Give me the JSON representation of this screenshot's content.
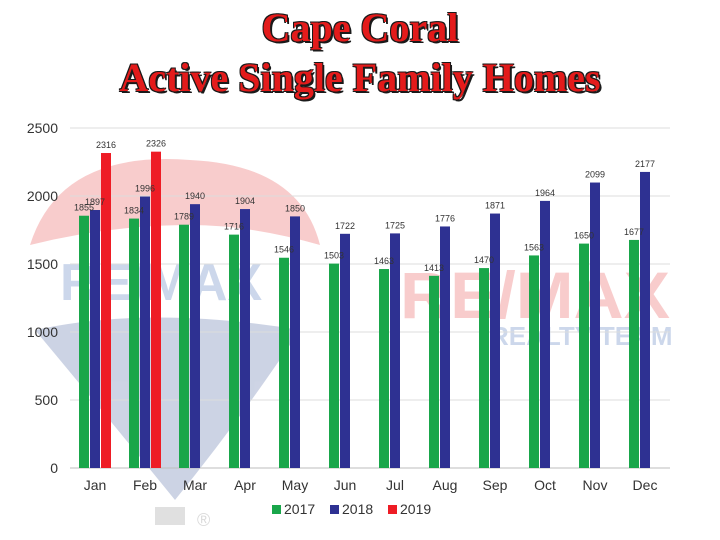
{
  "title_line1": "Cape Coral",
  "title_line2": "Active Single Family Homes",
  "watermark": {
    "brand": "RE/MAX",
    "team": "REALTY TEAM",
    "registered": "®"
  },
  "chart_data": {
    "type": "bar",
    "categories": [
      "Jan",
      "Feb",
      "Mar",
      "Apr",
      "May",
      "Jun",
      "Jul",
      "Aug",
      "Sep",
      "Oct",
      "Nov",
      "Dec"
    ],
    "series": [
      {
        "name": "2017",
        "color": "#19a64a",
        "values": [
          1855,
          1834,
          1789,
          1716,
          1546,
          1503,
          1463,
          1413,
          1470,
          1563,
          1650,
          1677
        ]
      },
      {
        "name": "2018",
        "color": "#2e3192",
        "values": [
          1897,
          1996,
          1940,
          1904,
          1850,
          1722,
          1725,
          1776,
          1871,
          1964,
          2099,
          2177
        ]
      },
      {
        "name": "2019",
        "color": "#ee1c25",
        "values": [
          2316,
          2326,
          null,
          null,
          null,
          null,
          null,
          null,
          null,
          null,
          null,
          null
        ]
      }
    ],
    "ylim": [
      0,
      2500
    ],
    "yticks": [
      0,
      500,
      1000,
      1500,
      2000,
      2500
    ],
    "grid": true,
    "legend": "bottom"
  }
}
